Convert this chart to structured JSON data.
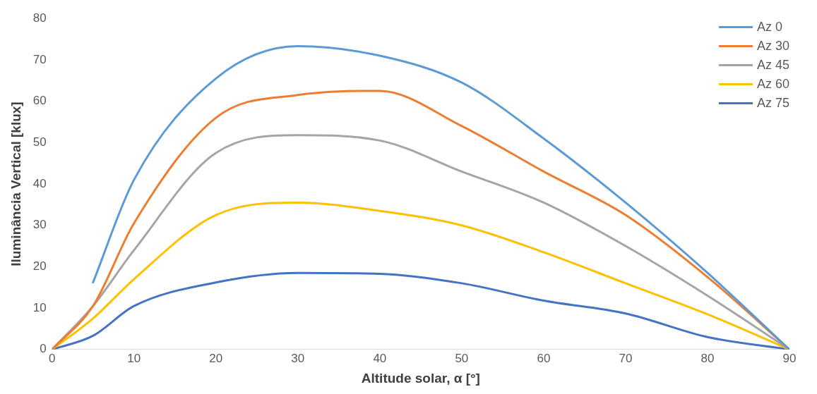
{
  "chart_data": {
    "type": "line",
    "xlabel": "Altitude solar, α [°]",
    "ylabel": "Iluminância Vertical [klux]",
    "xlim": [
      0,
      90
    ],
    "xticks": [
      0,
      10,
      20,
      30,
      40,
      50,
      60,
      70,
      80,
      90
    ],
    "ylim": [
      0,
      80
    ],
    "yticks": [
      0,
      10,
      20,
      30,
      40,
      50,
      60,
      70,
      80
    ],
    "grid": false,
    "legend": "top right",
    "marker": "none",
    "line_style": "solid",
    "series": [
      {
        "name": "Az 0",
        "color": "#5b9bd5",
        "x": [
          5,
          10,
          20,
          30,
          40,
          50,
          60,
          70,
          80,
          90
        ],
        "values": [
          16.2,
          41,
          65.5,
          73.3,
          71,
          64.5,
          51,
          35.5,
          18.5,
          0
        ]
      },
      {
        "name": "Az 30",
        "color": "#ed7d31",
        "x": [
          0,
          5,
          10,
          20,
          30,
          40,
          50,
          60,
          70,
          80,
          90
        ],
        "values": [
          0,
          10.5,
          30.5,
          56,
          61.5,
          62.5,
          54,
          43,
          32.5,
          17.5,
          0
        ]
      },
      {
        "name": "Az 45",
        "color": "#a5a5a5",
        "x": [
          0,
          5,
          10,
          20,
          30,
          40,
          50,
          60,
          70,
          80,
          90
        ],
        "values": [
          0,
          10.5,
          24,
          47.5,
          51.8,
          50.5,
          43,
          35.5,
          25,
          13,
          0
        ]
      },
      {
        "name": "Az 60",
        "color": "#ffc000",
        "x": [
          0,
          5,
          10,
          20,
          30,
          40,
          50,
          60,
          70,
          80,
          90
        ],
        "values": [
          0,
          7.5,
          17,
          32.5,
          35.5,
          33.5,
          30,
          23.5,
          16,
          8.5,
          0
        ]
      },
      {
        "name": "Az 75",
        "color": "#4472c4",
        "x": [
          0,
          5,
          10,
          20,
          30,
          40,
          50,
          60,
          70,
          80,
          90
        ],
        "values": [
          0,
          3.3,
          10.5,
          16.2,
          18.5,
          18.3,
          16,
          11.8,
          8.7,
          3,
          0
        ]
      }
    ]
  }
}
